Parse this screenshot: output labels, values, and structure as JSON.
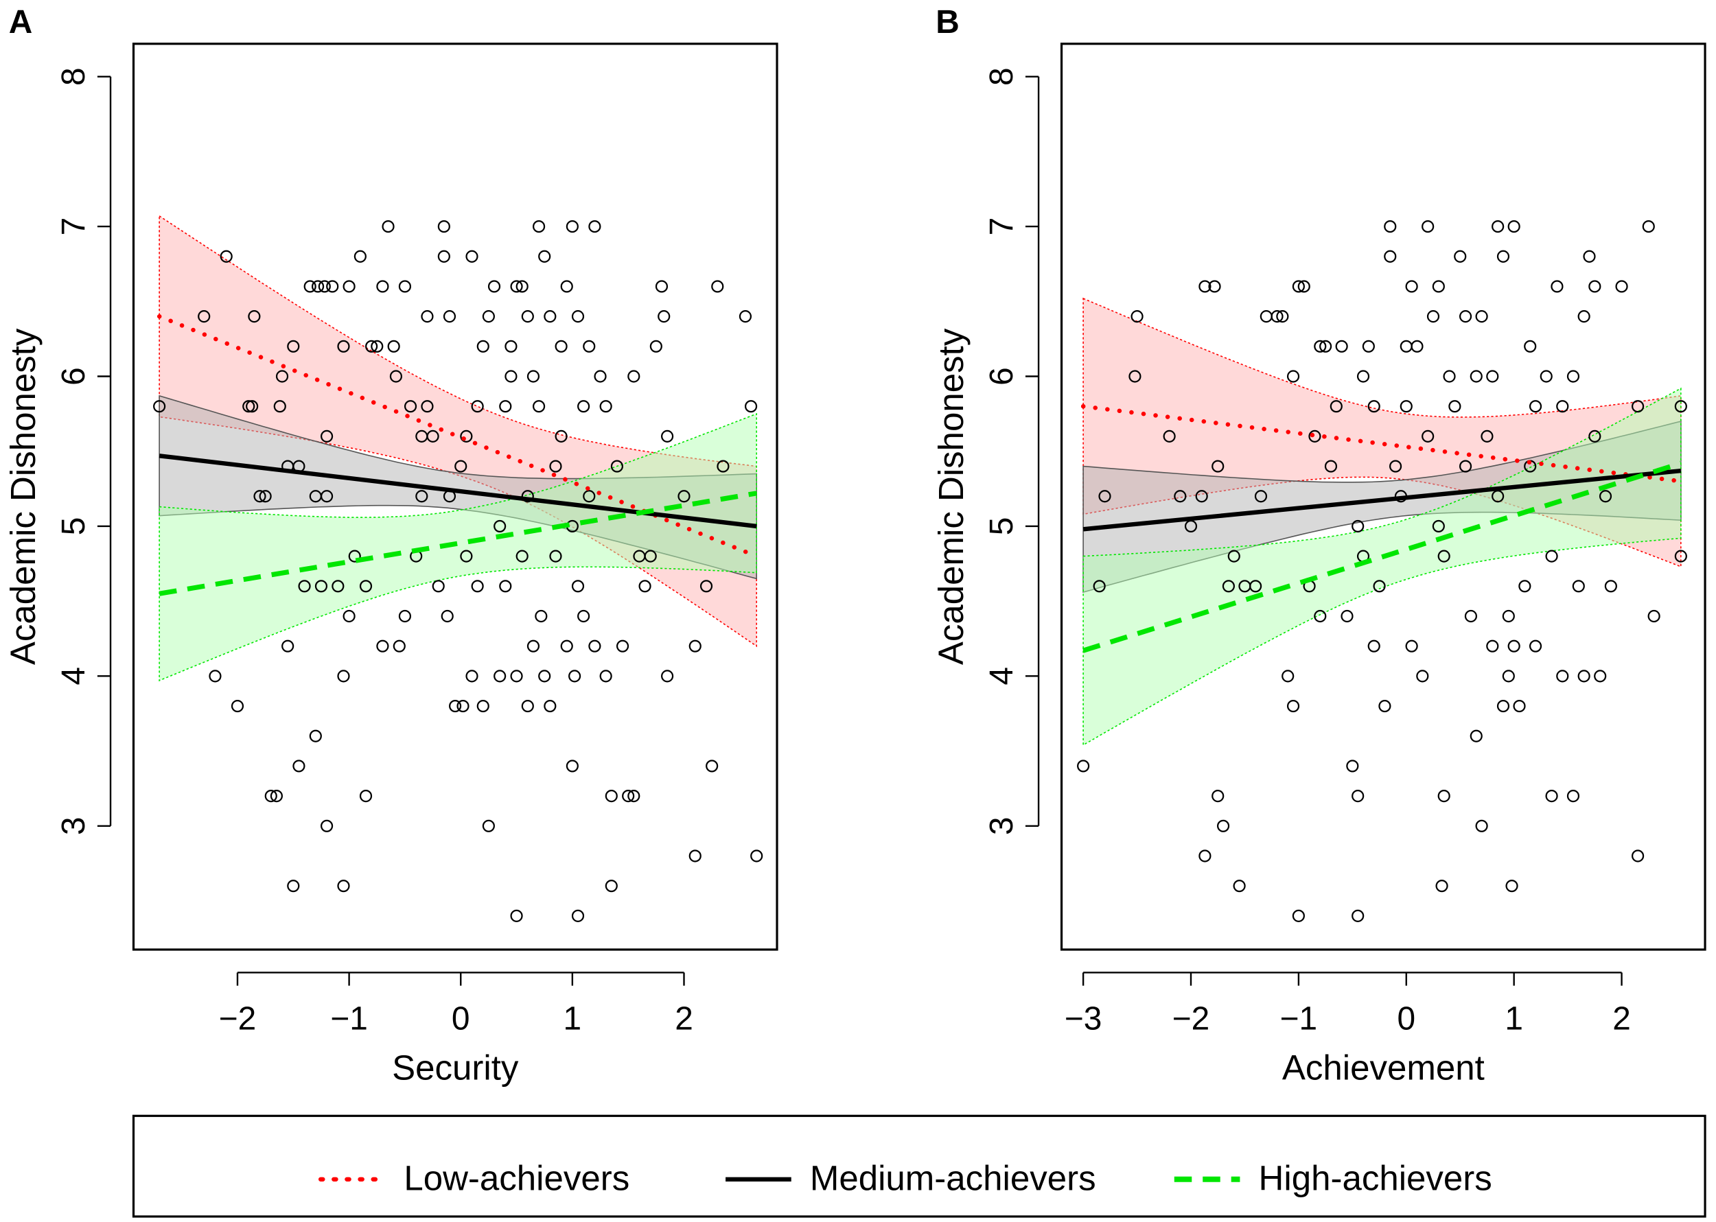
{
  "chart_data": [
    {
      "type": "scatter",
      "panel_label": "A",
      "xlabel": "Security",
      "ylabel": "Academic Dishonesty",
      "xticks": [
        -2,
        -1,
        0,
        1,
        2
      ],
      "xtick_labels": [
        "−2",
        "−1",
        "0",
        "1",
        "2"
      ],
      "yticks": [
        3,
        4,
        5,
        6,
        7,
        8
      ],
      "ylim": [
        2.3,
        8.2
      ],
      "xlim": [
        -2.92,
        2.85
      ],
      "grid": false,
      "points": [
        [
          -2.7,
          5.8
        ],
        [
          -2.3,
          6.4
        ],
        [
          -2.2,
          4.0
        ],
        [
          -2.1,
          6.8
        ],
        [
          -2.0,
          3.8
        ],
        [
          -1.9,
          5.8
        ],
        [
          -1.85,
          6.4
        ],
        [
          -1.87,
          5.8
        ],
        [
          -1.8,
          5.2
        ],
        [
          -1.75,
          5.2
        ],
        [
          -1.7,
          3.2
        ],
        [
          -1.65,
          3.2
        ],
        [
          -1.6,
          6.0
        ],
        [
          -1.62,
          5.8
        ],
        [
          -1.55,
          4.2
        ],
        [
          -1.55,
          5.4
        ],
        [
          -1.5,
          6.2
        ],
        [
          -1.5,
          2.6
        ],
        [
          -1.45,
          3.4
        ],
        [
          -1.45,
          5.4
        ],
        [
          -1.4,
          4.6
        ],
        [
          -1.35,
          6.6
        ],
        [
          -1.3,
          5.2
        ],
        [
          -1.3,
          3.6
        ],
        [
          -1.28,
          6.6
        ],
        [
          -1.22,
          6.6
        ],
        [
          -1.25,
          4.6
        ],
        [
          -1.2,
          5.6
        ],
        [
          -1.2,
          5.2
        ],
        [
          -1.15,
          6.6
        ],
        [
          -1.2,
          3.0
        ],
        [
          -1.1,
          4.6
        ],
        [
          -1.05,
          4.0
        ],
        [
          -1.05,
          6.2
        ],
        [
          -1.05,
          2.6
        ],
        [
          -1.0,
          4.4
        ],
        [
          -1.0,
          6.6
        ],
        [
          -0.95,
          4.8
        ],
        [
          -0.9,
          6.8
        ],
        [
          -0.85,
          3.2
        ],
        [
          -0.85,
          4.6
        ],
        [
          -0.8,
          6.2
        ],
        [
          -0.75,
          6.2
        ],
        [
          -0.7,
          6.6
        ],
        [
          -0.7,
          4.2
        ],
        [
          -0.65,
          7.0
        ],
        [
          -0.6,
          6.2
        ],
        [
          -0.58,
          6.0
        ],
        [
          -0.55,
          4.2
        ],
        [
          -0.5,
          6.6
        ],
        [
          -0.5,
          4.4
        ],
        [
          -0.45,
          5.8
        ],
        [
          -0.4,
          4.8
        ],
        [
          -0.35,
          5.6
        ],
        [
          -0.35,
          5.2
        ],
        [
          -0.3,
          6.4
        ],
        [
          -0.3,
          5.8
        ],
        [
          -0.25,
          5.6
        ],
        [
          -0.2,
          4.6
        ],
        [
          -0.15,
          6.8
        ],
        [
          -0.15,
          7.0
        ],
        [
          -0.1,
          6.4
        ],
        [
          -0.1,
          5.2
        ],
        [
          -0.12,
          4.4
        ],
        [
          -0.05,
          3.8
        ],
        [
          0.0,
          5.4
        ],
        [
          0.02,
          3.8
        ],
        [
          0.05,
          5.6
        ],
        [
          0.05,
          4.8
        ],
        [
          0.1,
          6.8
        ],
        [
          0.1,
          4.0
        ],
        [
          0.15,
          5.8
        ],
        [
          0.15,
          4.6
        ],
        [
          0.2,
          6.2
        ],
        [
          0.2,
          3.8
        ],
        [
          0.25,
          6.4
        ],
        [
          0.25,
          3.0
        ],
        [
          0.3,
          6.6
        ],
        [
          0.35,
          5.0
        ],
        [
          0.35,
          4.0
        ],
        [
          0.4,
          4.6
        ],
        [
          0.4,
          5.8
        ],
        [
          0.45,
          6.0
        ],
        [
          0.45,
          6.2
        ],
        [
          0.5,
          6.6
        ],
        [
          0.5,
          4.0
        ],
        [
          0.5,
          2.4
        ],
        [
          0.55,
          6.6
        ],
        [
          0.55,
          4.8
        ],
        [
          0.6,
          6.4
        ],
        [
          0.6,
          5.2
        ],
        [
          0.6,
          3.8
        ],
        [
          0.65,
          6.0
        ],
        [
          0.65,
          4.2
        ],
        [
          0.7,
          7.0
        ],
        [
          0.7,
          5.8
        ],
        [
          0.72,
          4.4
        ],
        [
          0.75,
          6.8
        ],
        [
          0.75,
          4.0
        ],
        [
          0.8,
          6.4
        ],
        [
          0.8,
          3.8
        ],
        [
          0.85,
          5.4
        ],
        [
          0.85,
          4.8
        ],
        [
          0.9,
          6.2
        ],
        [
          0.9,
          5.6
        ],
        [
          0.95,
          6.6
        ],
        [
          0.95,
          4.2
        ],
        [
          1.0,
          7.0
        ],
        [
          1.0,
          5.0
        ],
        [
          1.0,
          3.4
        ],
        [
          1.02,
          4.0
        ],
        [
          1.05,
          6.4
        ],
        [
          1.05,
          4.6
        ],
        [
          1.05,
          2.4
        ],
        [
          1.1,
          5.8
        ],
        [
          1.1,
          4.4
        ],
        [
          1.15,
          6.2
        ],
        [
          1.15,
          5.2
        ],
        [
          1.2,
          7.0
        ],
        [
          1.2,
          4.2
        ],
        [
          1.25,
          6.0
        ],
        [
          1.3,
          5.8
        ],
        [
          1.3,
          4.0
        ],
        [
          1.35,
          3.2
        ],
        [
          1.35,
          2.6
        ],
        [
          1.4,
          5.4
        ],
        [
          1.45,
          4.2
        ],
        [
          1.5,
          3.2
        ],
        [
          1.55,
          6.0
        ],
        [
          1.55,
          3.2
        ],
        [
          1.6,
          4.8
        ],
        [
          1.65,
          4.6
        ],
        [
          1.7,
          4.8
        ],
        [
          1.75,
          6.2
        ],
        [
          1.8,
          6.6
        ],
        [
          1.82,
          6.4
        ],
        [
          1.85,
          4.0
        ],
        [
          1.85,
          5.6
        ],
        [
          2.0,
          5.2
        ],
        [
          2.1,
          4.2
        ],
        [
          2.1,
          2.8
        ],
        [
          2.2,
          4.6
        ],
        [
          2.25,
          3.4
        ],
        [
          2.3,
          6.6
        ],
        [
          2.35,
          5.4
        ],
        [
          2.55,
          6.4
        ],
        [
          2.6,
          5.8
        ],
        [
          2.65,
          2.8
        ]
      ],
      "series": [
        {
          "name": "Low-achievers",
          "style": "dotted",
          "color": "#ff0000",
          "band_color": "#ffb3b3",
          "x": [
            -2.7,
            2.65
          ],
          "y": [
            6.4,
            4.8
          ],
          "ci_halfwidth": {
            "left": 0.67,
            "min": 0.25,
            "min_at": 0.3,
            "right": 0.6
          }
        },
        {
          "name": "Medium-achievers",
          "style": "solid",
          "color": "#000000",
          "band_color": "#b3b3b3",
          "x": [
            -2.7,
            2.65
          ],
          "y": [
            5.47,
            5.0
          ],
          "ci_halfwidth": {
            "left": 0.4,
            "min": 0.12,
            "min_at": 0.0,
            "right": 0.35
          }
        },
        {
          "name": "High-achievers",
          "style": "dashed",
          "color": "#00e600",
          "band_color": "#b3ffb3",
          "x": [
            -2.7,
            2.65
          ],
          "y": [
            4.55,
            5.22
          ],
          "ci_halfwidth": {
            "left": 0.58,
            "min": 0.22,
            "min_at": 0.0,
            "right": 0.53
          }
        }
      ]
    },
    {
      "type": "scatter",
      "panel_label": "B",
      "xlabel": "Achievement",
      "ylabel": "Academic Dishonesty",
      "xticks": [
        -3,
        -2,
        -1,
        0,
        1,
        2
      ],
      "xtick_labels": [
        "−3",
        "−2",
        "−1",
        "0",
        "1",
        "2"
      ],
      "yticks": [
        3,
        4,
        5,
        6,
        7,
        8
      ],
      "ylim": [
        2.3,
        8.2
      ],
      "xlim": [
        -3.2,
        2.78
      ],
      "grid": false,
      "points": [
        [
          -3.0,
          3.4
        ],
        [
          -2.85,
          4.6
        ],
        [
          -2.8,
          5.2
        ],
        [
          -2.5,
          6.4
        ],
        [
          -2.52,
          6.0
        ],
        [
          -2.2,
          5.6
        ],
        [
          -2.1,
          5.2
        ],
        [
          -2.0,
          5.0
        ],
        [
          -1.9,
          5.2
        ],
        [
          -1.87,
          6.6
        ],
        [
          -1.78,
          6.6
        ],
        [
          -1.87,
          2.8
        ],
        [
          -1.75,
          5.4
        ],
        [
          -1.75,
          3.2
        ],
        [
          -1.7,
          3.0
        ],
        [
          -1.65,
          4.6
        ],
        [
          -1.6,
          4.8
        ],
        [
          -1.55,
          2.6
        ],
        [
          -1.5,
          4.6
        ],
        [
          -1.4,
          4.6
        ],
        [
          -1.35,
          5.2
        ],
        [
          -1.3,
          6.4
        ],
        [
          -1.2,
          6.4
        ],
        [
          -1.15,
          6.4
        ],
        [
          -1.1,
          4.0
        ],
        [
          -1.05,
          3.8
        ],
        [
          -1.05,
          6.0
        ],
        [
          -1.0,
          6.6
        ],
        [
          -0.95,
          6.6
        ],
        [
          -1.0,
          2.4
        ],
        [
          -0.9,
          4.6
        ],
        [
          -0.85,
          5.6
        ],
        [
          -0.8,
          6.2
        ],
        [
          -0.8,
          4.4
        ],
        [
          -0.75,
          6.2
        ],
        [
          -0.7,
          5.4
        ],
        [
          -0.65,
          5.8
        ],
        [
          -0.6,
          6.2
        ],
        [
          -0.55,
          4.4
        ],
        [
          -0.5,
          3.4
        ],
        [
          -0.45,
          5.0
        ],
        [
          -0.45,
          3.2
        ],
        [
          -0.4,
          6.0
        ],
        [
          -0.45,
          2.4
        ],
        [
          -0.4,
          4.8
        ],
        [
          -0.35,
          6.2
        ],
        [
          -0.3,
          5.8
        ],
        [
          -0.3,
          4.2
        ],
        [
          -0.25,
          4.6
        ],
        [
          -0.2,
          3.8
        ],
        [
          -0.15,
          6.8
        ],
        [
          -0.15,
          7.0
        ],
        [
          -0.1,
          5.4
        ],
        [
          -0.05,
          5.2
        ],
        [
          0.0,
          6.2
        ],
        [
          0.0,
          5.8
        ],
        [
          0.05,
          6.6
        ],
        [
          0.05,
          4.2
        ],
        [
          0.1,
          6.2
        ],
        [
          0.15,
          4.0
        ],
        [
          0.2,
          7.0
        ],
        [
          0.2,
          5.6
        ],
        [
          0.25,
          6.4
        ],
        [
          0.3,
          6.6
        ],
        [
          0.3,
          5.0
        ],
        [
          0.35,
          4.8
        ],
        [
          0.35,
          3.2
        ],
        [
          0.33,
          2.6
        ],
        [
          0.4,
          6.0
        ],
        [
          0.45,
          5.8
        ],
        [
          0.5,
          6.8
        ],
        [
          0.55,
          6.4
        ],
        [
          0.55,
          5.4
        ],
        [
          0.6,
          4.4
        ],
        [
          0.65,
          6.0
        ],
        [
          0.65,
          3.6
        ],
        [
          0.7,
          6.4
        ],
        [
          0.7,
          3.0
        ],
        [
          0.75,
          5.6
        ],
        [
          0.8,
          6.0
        ],
        [
          0.8,
          4.2
        ],
        [
          0.85,
          7.0
        ],
        [
          0.85,
          5.2
        ],
        [
          0.9,
          6.8
        ],
        [
          0.9,
          3.8
        ],
        [
          0.95,
          4.4
        ],
        [
          0.95,
          4.0
        ],
        [
          1.0,
          7.0
        ],
        [
          0.98,
          2.6
        ],
        [
          1.0,
          4.2
        ],
        [
          1.05,
          3.8
        ],
        [
          1.1,
          4.6
        ],
        [
          1.15,
          6.2
        ],
        [
          1.15,
          5.4
        ],
        [
          1.2,
          5.8
        ],
        [
          1.2,
          4.2
        ],
        [
          1.3,
          6.0
        ],
        [
          1.35,
          4.8
        ],
        [
          1.35,
          3.2
        ],
        [
          1.4,
          6.6
        ],
        [
          1.45,
          5.8
        ],
        [
          1.45,
          4.0
        ],
        [
          1.55,
          6.0
        ],
        [
          1.55,
          3.2
        ],
        [
          1.6,
          4.6
        ],
        [
          1.65,
          6.4
        ],
        [
          1.65,
          4.0
        ],
        [
          1.7,
          6.8
        ],
        [
          1.75,
          5.6
        ],
        [
          1.75,
          6.6
        ],
        [
          1.8,
          4.0
        ],
        [
          1.85,
          5.2
        ],
        [
          1.9,
          4.6
        ],
        [
          2.0,
          6.6
        ],
        [
          2.15,
          5.8
        ],
        [
          2.15,
          2.8
        ],
        [
          2.25,
          7.0
        ],
        [
          2.3,
          4.4
        ],
        [
          2.55,
          5.8
        ],
        [
          2.55,
          4.8
        ]
      ],
      "series": [
        {
          "name": "Low-achievers",
          "style": "dotted",
          "color": "#ff0000",
          "band_color": "#ffb3b3",
          "x": [
            -3.0,
            2.55
          ],
          "y": [
            5.8,
            5.3
          ],
          "ci_halfwidth": {
            "left": 0.72,
            "min": 0.22,
            "min_at": 0.0,
            "right": 0.57
          }
        },
        {
          "name": "Medium-achievers",
          "style": "solid",
          "color": "#000000",
          "band_color": "#b3b3b3",
          "x": [
            -3.0,
            2.55
          ],
          "y": [
            4.98,
            5.37
          ],
          "ci_halfwidth": {
            "left": 0.42,
            "min": 0.12,
            "min_at": 0.0,
            "right": 0.33
          }
        },
        {
          "name": "High-achievers",
          "style": "dashed",
          "color": "#00e600",
          "band_color": "#b3ffb3",
          "x": [
            -3.0,
            2.55
          ],
          "y": [
            4.17,
            5.42
          ],
          "ci_halfwidth": {
            "left": 0.63,
            "min": 0.2,
            "min_at": 0.0,
            "right": 0.5
          }
        }
      ]
    }
  ],
  "legend": {
    "placement": "bottom",
    "items": [
      {
        "label": "Low-achievers",
        "style": "dotted",
        "color": "#ff0000"
      },
      {
        "label": "Medium-achievers",
        "style": "solid",
        "color": "#000000"
      },
      {
        "label": "High-achievers",
        "style": "dashed",
        "color": "#00e600"
      }
    ]
  }
}
